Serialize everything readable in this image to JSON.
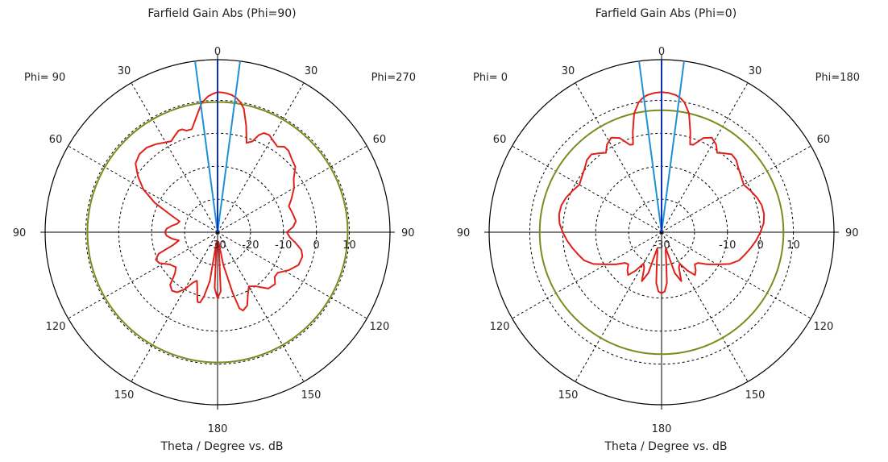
{
  "colors": {
    "pattern": "#e0201a",
    "beam_edges": "#1e90d8",
    "main_lobe": "#0a2fbf",
    "reference_circle": "#7a8c1c",
    "axes": "#000000",
    "grid": "#000000"
  },
  "chart_data": [
    {
      "type": "polar",
      "title": "Farfield Gain Abs (Phi=90)",
      "xlabel": "Theta / Degree vs. dB",
      "left_label": "Phi= 90",
      "right_label": "Phi=270",
      "angle_ticks": [
        "0",
        "30",
        "60",
        "90",
        "120",
        "150",
        "180"
      ],
      "radial_ticks": [
        "-30",
        "-20",
        "-10",
        "0",
        "10"
      ],
      "rlim": [
        -30,
        15
      ],
      "grid": true,
      "main_lobe_direction": 0,
      "beam_edges_deg": [
        -7.5,
        7.5
      ],
      "reference_circle_db": 9.5,
      "pattern": {
        "theta": [
          0,
          2,
          4,
          6,
          8,
          10,
          12,
          15,
          18,
          21,
          23,
          25,
          28,
          32,
          35,
          38,
          41,
          45,
          50,
          55,
          60,
          66,
          70,
          76,
          82,
          86,
          90,
          94,
          98,
          102,
          106,
          112,
          118,
          124,
          128,
          132,
          138,
          145,
          150,
          154,
          158,
          162,
          164,
          166,
          170,
          174,
          177,
          180,
          183,
          186,
          189,
          192,
          194,
          196,
          198,
          200,
          203,
          206,
          210,
          214,
          218,
          222,
          226,
          230,
          236,
          242,
          246,
          250,
          254,
          258,
          262,
          266,
          270,
          274,
          278,
          282,
          286,
          290,
          295,
          300,
          305,
          310,
          315,
          320,
          325,
          330,
          333,
          336,
          339,
          341,
          343,
          346,
          350,
          353,
          356,
          358,
          360
        ],
        "db": [
          12.5,
          12.4,
          12.2,
          11.8,
          11.1,
          10.0,
          8.3,
          3.5,
          -1.5,
          -0.5,
          2.0,
          3.2,
          3.4,
          2.3,
          1.7,
          2.9,
          2.8,
          1.7,
          0.8,
          -1.8,
          -3.2,
          -5.5,
          -7.0,
          -6.5,
          -6.0,
          -7.0,
          -9.0,
          -8.0,
          -6.0,
          -4.0,
          -3.2,
          -3.5,
          -5.5,
          -8.0,
          -8.0,
          -6.5,
          -7.0,
          -10.0,
          -11.0,
          -9.0,
          -6.0,
          -5.0,
          -6.0,
          -11.0,
          -20.0,
          -27.0,
          -12.0,
          -10.0,
          -13.0,
          -27.0,
          -15.0,
          -10.0,
          -8.0,
          -8.0,
          -10.0,
          -12.0,
          -14.0,
          -13.0,
          -10.0,
          -8.0,
          -7.5,
          -8.5,
          -12.0,
          -13.5,
          -12.5,
          -10.0,
          -9.5,
          -11.0,
          -16.0,
          -18.0,
          -16.0,
          -14.5,
          -14.0,
          -14.5,
          -16.0,
          -17.5,
          -18.0,
          -15.0,
          -9.0,
          -4.0,
          -0.5,
          2.5,
          3.5,
          3.5,
          2.6,
          1.5,
          1.0,
          2.0,
          3.0,
          3.0,
          2.2,
          2.2,
          6.0,
          9.5,
          11.3,
          12.0,
          12.5
        ]
      }
    },
    {
      "type": "polar",
      "title": "Farfield Gain Abs (Phi=0)",
      "xlabel": "Theta / Degree vs. dB",
      "left_label": "Phi=  0",
      "right_label": "Phi=180",
      "angle_ticks": [
        "0",
        "30",
        "60",
        "90",
        "120",
        "150",
        "180"
      ],
      "radial_ticks": [
        "-30",
        "-10",
        "0",
        "10"
      ],
      "rlim": [
        -30,
        15
      ],
      "grid": true,
      "main_lobe_direction": 0,
      "beam_edges_deg": [
        -7.5,
        7.5
      ],
      "reference_circle_db": 7,
      "pattern": {
        "theta": [
          0,
          3,
          6,
          8,
          10,
          13,
          16,
          18,
          20,
          24,
          28,
          32,
          35,
          38,
          42,
          46,
          50,
          55,
          60,
          65,
          70,
          75,
          80,
          85,
          90,
          95,
          100,
          105,
          110,
          115,
          120,
          125,
          130,
          134,
          138,
          142,
          146,
          150,
          154,
          158,
          162,
          165,
          168,
          171,
          174,
          177,
          180,
          183,
          186,
          189,
          192,
          195,
          198,
          202,
          206,
          210,
          214,
          218,
          222,
          226,
          230,
          235,
          240,
          245,
          250,
          255,
          260,
          265,
          270,
          275,
          280,
          285,
          290,
          295,
          300,
          305,
          310,
          314,
          318,
          322,
          325,
          328,
          332,
          336,
          340,
          342,
          344,
          347,
          350,
          352,
          354,
          357,
          360
        ],
        "db": [
          12.5,
          12.3,
          11.8,
          11.1,
          10.0,
          7.0,
          1.7,
          -2.0,
          -1.8,
          1.3,
          2.5,
          1.3,
          -0.6,
          0.4,
          1.8,
          1.5,
          0.4,
          -0.5,
          -1.2,
          -0.2,
          0.8,
          1.5,
          1.6,
          1.1,
          0.0,
          -1.2,
          -2.5,
          -3.8,
          -5.0,
          -7.2,
          -10.5,
          -13.0,
          -15.5,
          -16.0,
          -14.5,
          -13.5,
          -16.0,
          -19.0,
          -18.0,
          -14.0,
          -17.0,
          -25.0,
          -24.0,
          -21.0,
          -14.5,
          -12.0,
          -11.5,
          -12.0,
          -14.5,
          -21.0,
          -24.0,
          -25.0,
          -17.0,
          -14.0,
          -18.0,
          -19.0,
          -16.0,
          -13.5,
          -14.5,
          -16.0,
          -15.5,
          -13.0,
          -10.5,
          -7.2,
          -5.0,
          -3.8,
          -2.5,
          -1.2,
          0.0,
          1.1,
          1.6,
          1.5,
          0.8,
          -0.2,
          -1.2,
          -0.5,
          0.4,
          1.5,
          1.8,
          0.4,
          -0.6,
          1.3,
          2.5,
          1.3,
          -1.8,
          -2.0,
          1.7,
          7.0,
          10.0,
          11.1,
          11.8,
          12.3,
          12.5
        ]
      }
    }
  ]
}
